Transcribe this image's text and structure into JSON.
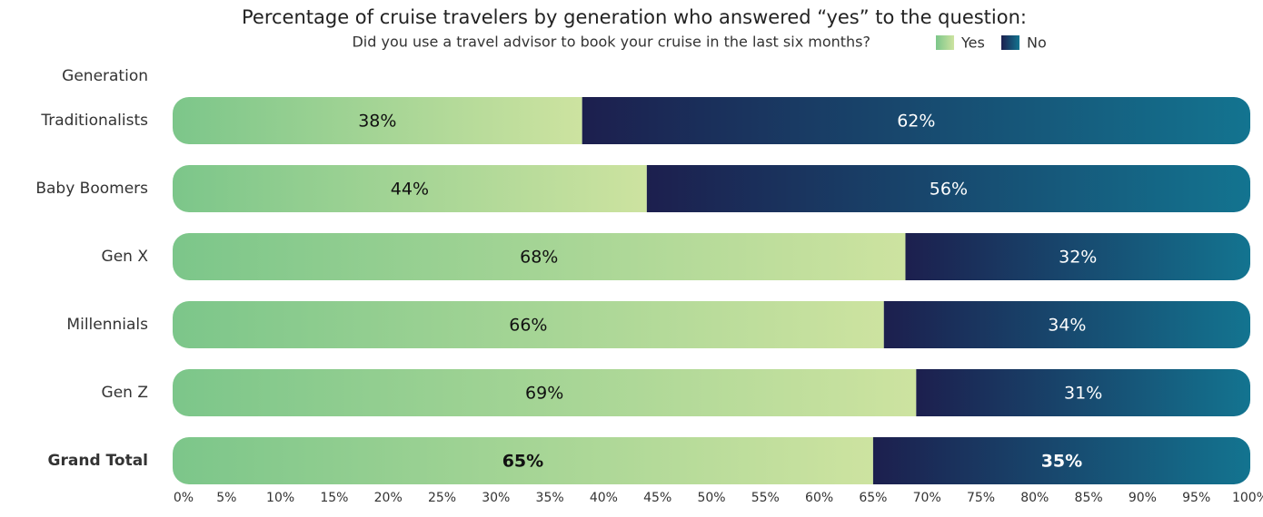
{
  "chart_data": {
    "type": "stacked-bar-horizontal",
    "title": "Percentage of cruise travelers by generation who answered “yes” to the question:",
    "subtitle": "Did you use a travel advisor to book your cruise in the last six months?",
    "y_axis_label": "Generation",
    "categories": [
      "Traditionalists",
      "Baby Boomers",
      "Gen X",
      "Millennials",
      "Gen Z",
      "Grand Total"
    ],
    "series": [
      {
        "name": "Yes",
        "color": "#8fcc8e",
        "values": [
          38,
          44,
          68,
          66,
          69,
          65
        ],
        "value_labels": [
          "38%",
          "44%",
          "68%",
          "66%",
          "69%",
          "65%"
        ]
      },
      {
        "name": "No",
        "color": "#1b2f5c",
        "values": [
          62,
          56,
          32,
          34,
          31,
          35
        ],
        "value_labels": [
          "62%",
          "56%",
          "32%",
          "34%",
          "31%",
          "35%"
        ]
      }
    ],
    "xlim": [
      0,
      100
    ],
    "xticks": [
      {
        "value": 0,
        "label": "0%"
      },
      {
        "value": 5,
        "label": "5%"
      },
      {
        "value": 10,
        "label": "10%"
      },
      {
        "value": 15,
        "label": "15%"
      },
      {
        "value": 20,
        "label": "20%"
      },
      {
        "value": 25,
        "label": "25%"
      },
      {
        "value": 30,
        "label": "30%"
      },
      {
        "value": 35,
        "label": "35%"
      },
      {
        "value": 40,
        "label": "40%"
      },
      {
        "value": 45,
        "label": "45%"
      },
      {
        "value": 50,
        "label": "50%"
      },
      {
        "value": 55,
        "label": "55%"
      },
      {
        "value": 60,
        "label": "60%"
      },
      {
        "value": 65,
        "label": "65%"
      },
      {
        "value": 70,
        "label": "70%"
      },
      {
        "value": 75,
        "label": "75%"
      },
      {
        "value": 80,
        "label": "80%"
      },
      {
        "value": 85,
        "label": "85%"
      },
      {
        "value": 90,
        "label": "90%"
      },
      {
        "value": 95,
        "label": "95%"
      },
      {
        "value": 100,
        "label": "100%"
      }
    ],
    "grid": false
  }
}
